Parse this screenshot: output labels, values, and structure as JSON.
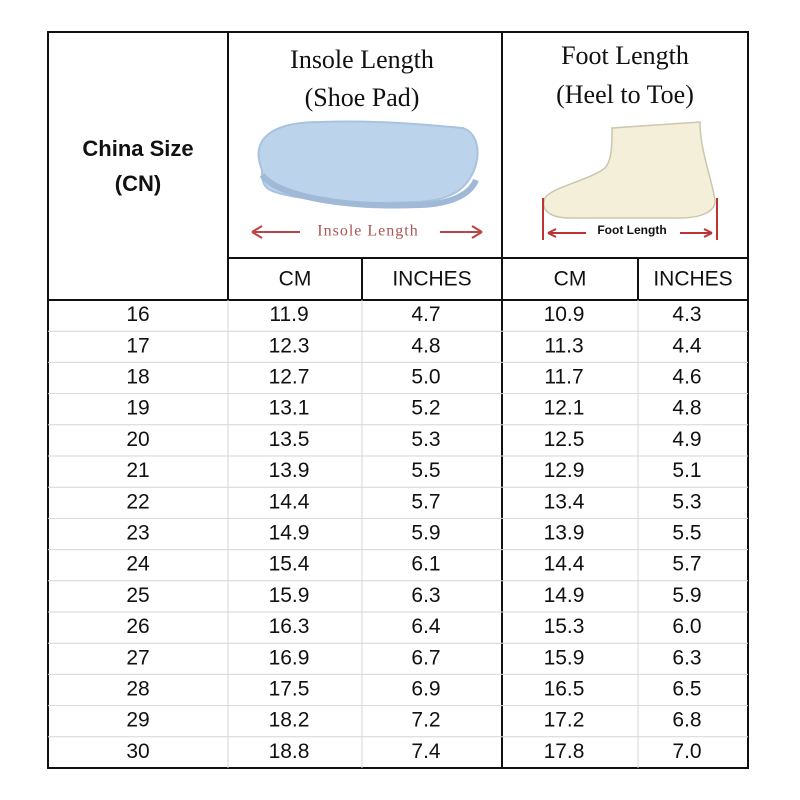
{
  "header": {
    "size_label": [
      "China Size",
      "(CN)"
    ],
    "insole_title": [
      "Insole Length",
      "(Shoe Pad)"
    ],
    "insole_caption": "Insole Length",
    "foot_title": [
      "Foot Length",
      "(Heel to Toe)"
    ],
    "foot_caption": "Foot Length",
    "units": [
      "CM",
      "INCHES",
      "CM",
      "INCHES"
    ]
  },
  "table": {
    "rows": [
      [
        "16",
        "11.9",
        "4.7",
        "10.9",
        "4.3"
      ],
      [
        "17",
        "12.3",
        "4.8",
        "11.3",
        "4.4"
      ],
      [
        "18",
        "12.7",
        "5.0",
        "11.7",
        "4.6"
      ],
      [
        "19",
        "13.1",
        "5.2",
        "12.1",
        "4.8"
      ],
      [
        "20",
        "13.5",
        "5.3",
        "12.5",
        "4.9"
      ],
      [
        "21",
        "13.9",
        "5.5",
        "12.9",
        "5.1"
      ],
      [
        "22",
        "14.4",
        "5.7",
        "13.4",
        "5.3"
      ],
      [
        "23",
        "14.9",
        "5.9",
        "13.9",
        "5.5"
      ],
      [
        "24",
        "15.4",
        "6.1",
        "14.4",
        "5.7"
      ],
      [
        "25",
        "15.9",
        "6.3",
        "14.9",
        "5.9"
      ],
      [
        "26",
        "16.3",
        "6.4",
        "15.3",
        "6.0"
      ],
      [
        "27",
        "16.9",
        "6.7",
        "15.9",
        "6.3"
      ],
      [
        "28",
        "17.5",
        "6.9",
        "16.5",
        "6.5"
      ],
      [
        "29",
        "18.2",
        "7.2",
        "17.2",
        "6.8"
      ],
      [
        "30",
        "18.8",
        "7.4",
        "17.8",
        "7.0"
      ]
    ]
  }
}
